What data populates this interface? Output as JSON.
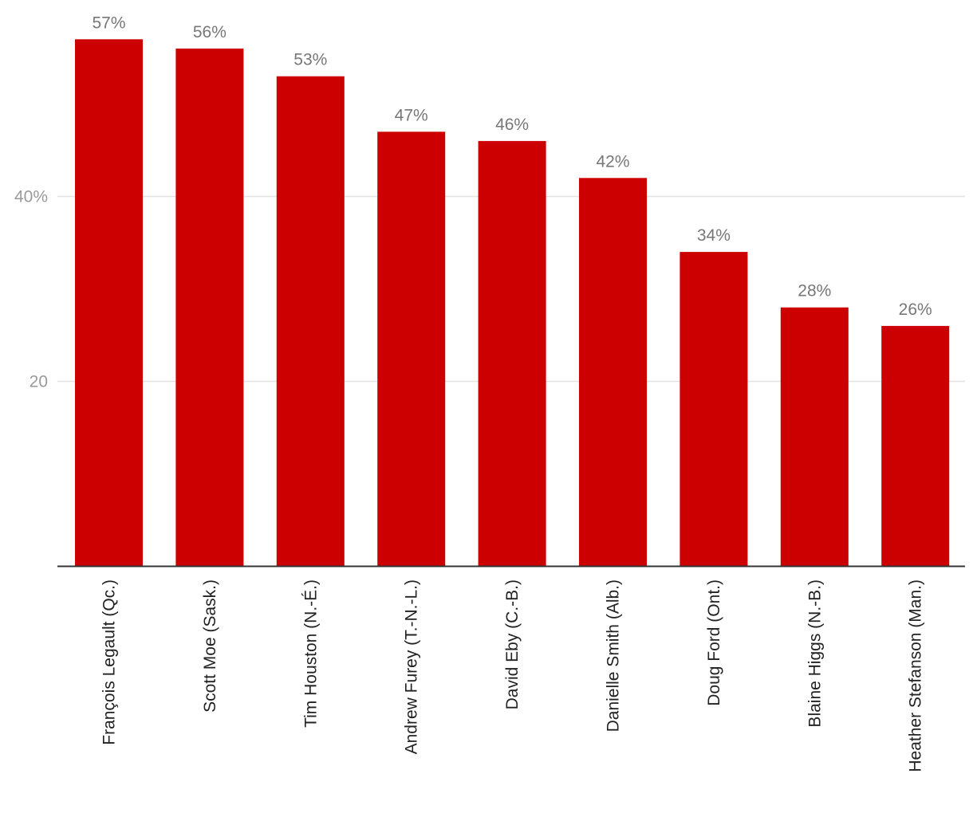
{
  "chart_data": {
    "type": "bar",
    "categories": [
      "François Legault (Qc.)",
      "Scott Moe (Sask.)",
      "Tim Houston (N.-É.)",
      "Andrew Furey (T.-N.-L.)",
      "David Eby (C.-B.)",
      "Danielle Smith (Alb.)",
      "Doug Ford (Ont.)",
      "Blaine Higgs (N.-B.)",
      "Heather Stefanson (Man.)"
    ],
    "values": [
      57,
      56,
      53,
      47,
      46,
      42,
      34,
      28,
      26
    ],
    "value_labels": [
      "57%",
      "56%",
      "53%",
      "47%",
      "46%",
      "42%",
      "34%",
      "28%",
      "26%"
    ],
    "y_ticks": [
      {
        "value": 20,
        "label": "20"
      },
      {
        "value": 40,
        "label": "40%"
      }
    ],
    "ylim": [
      0,
      60
    ],
    "grid": true,
    "bar_color": "#cc0000",
    "title": "",
    "xlabel": "",
    "ylabel": ""
  }
}
